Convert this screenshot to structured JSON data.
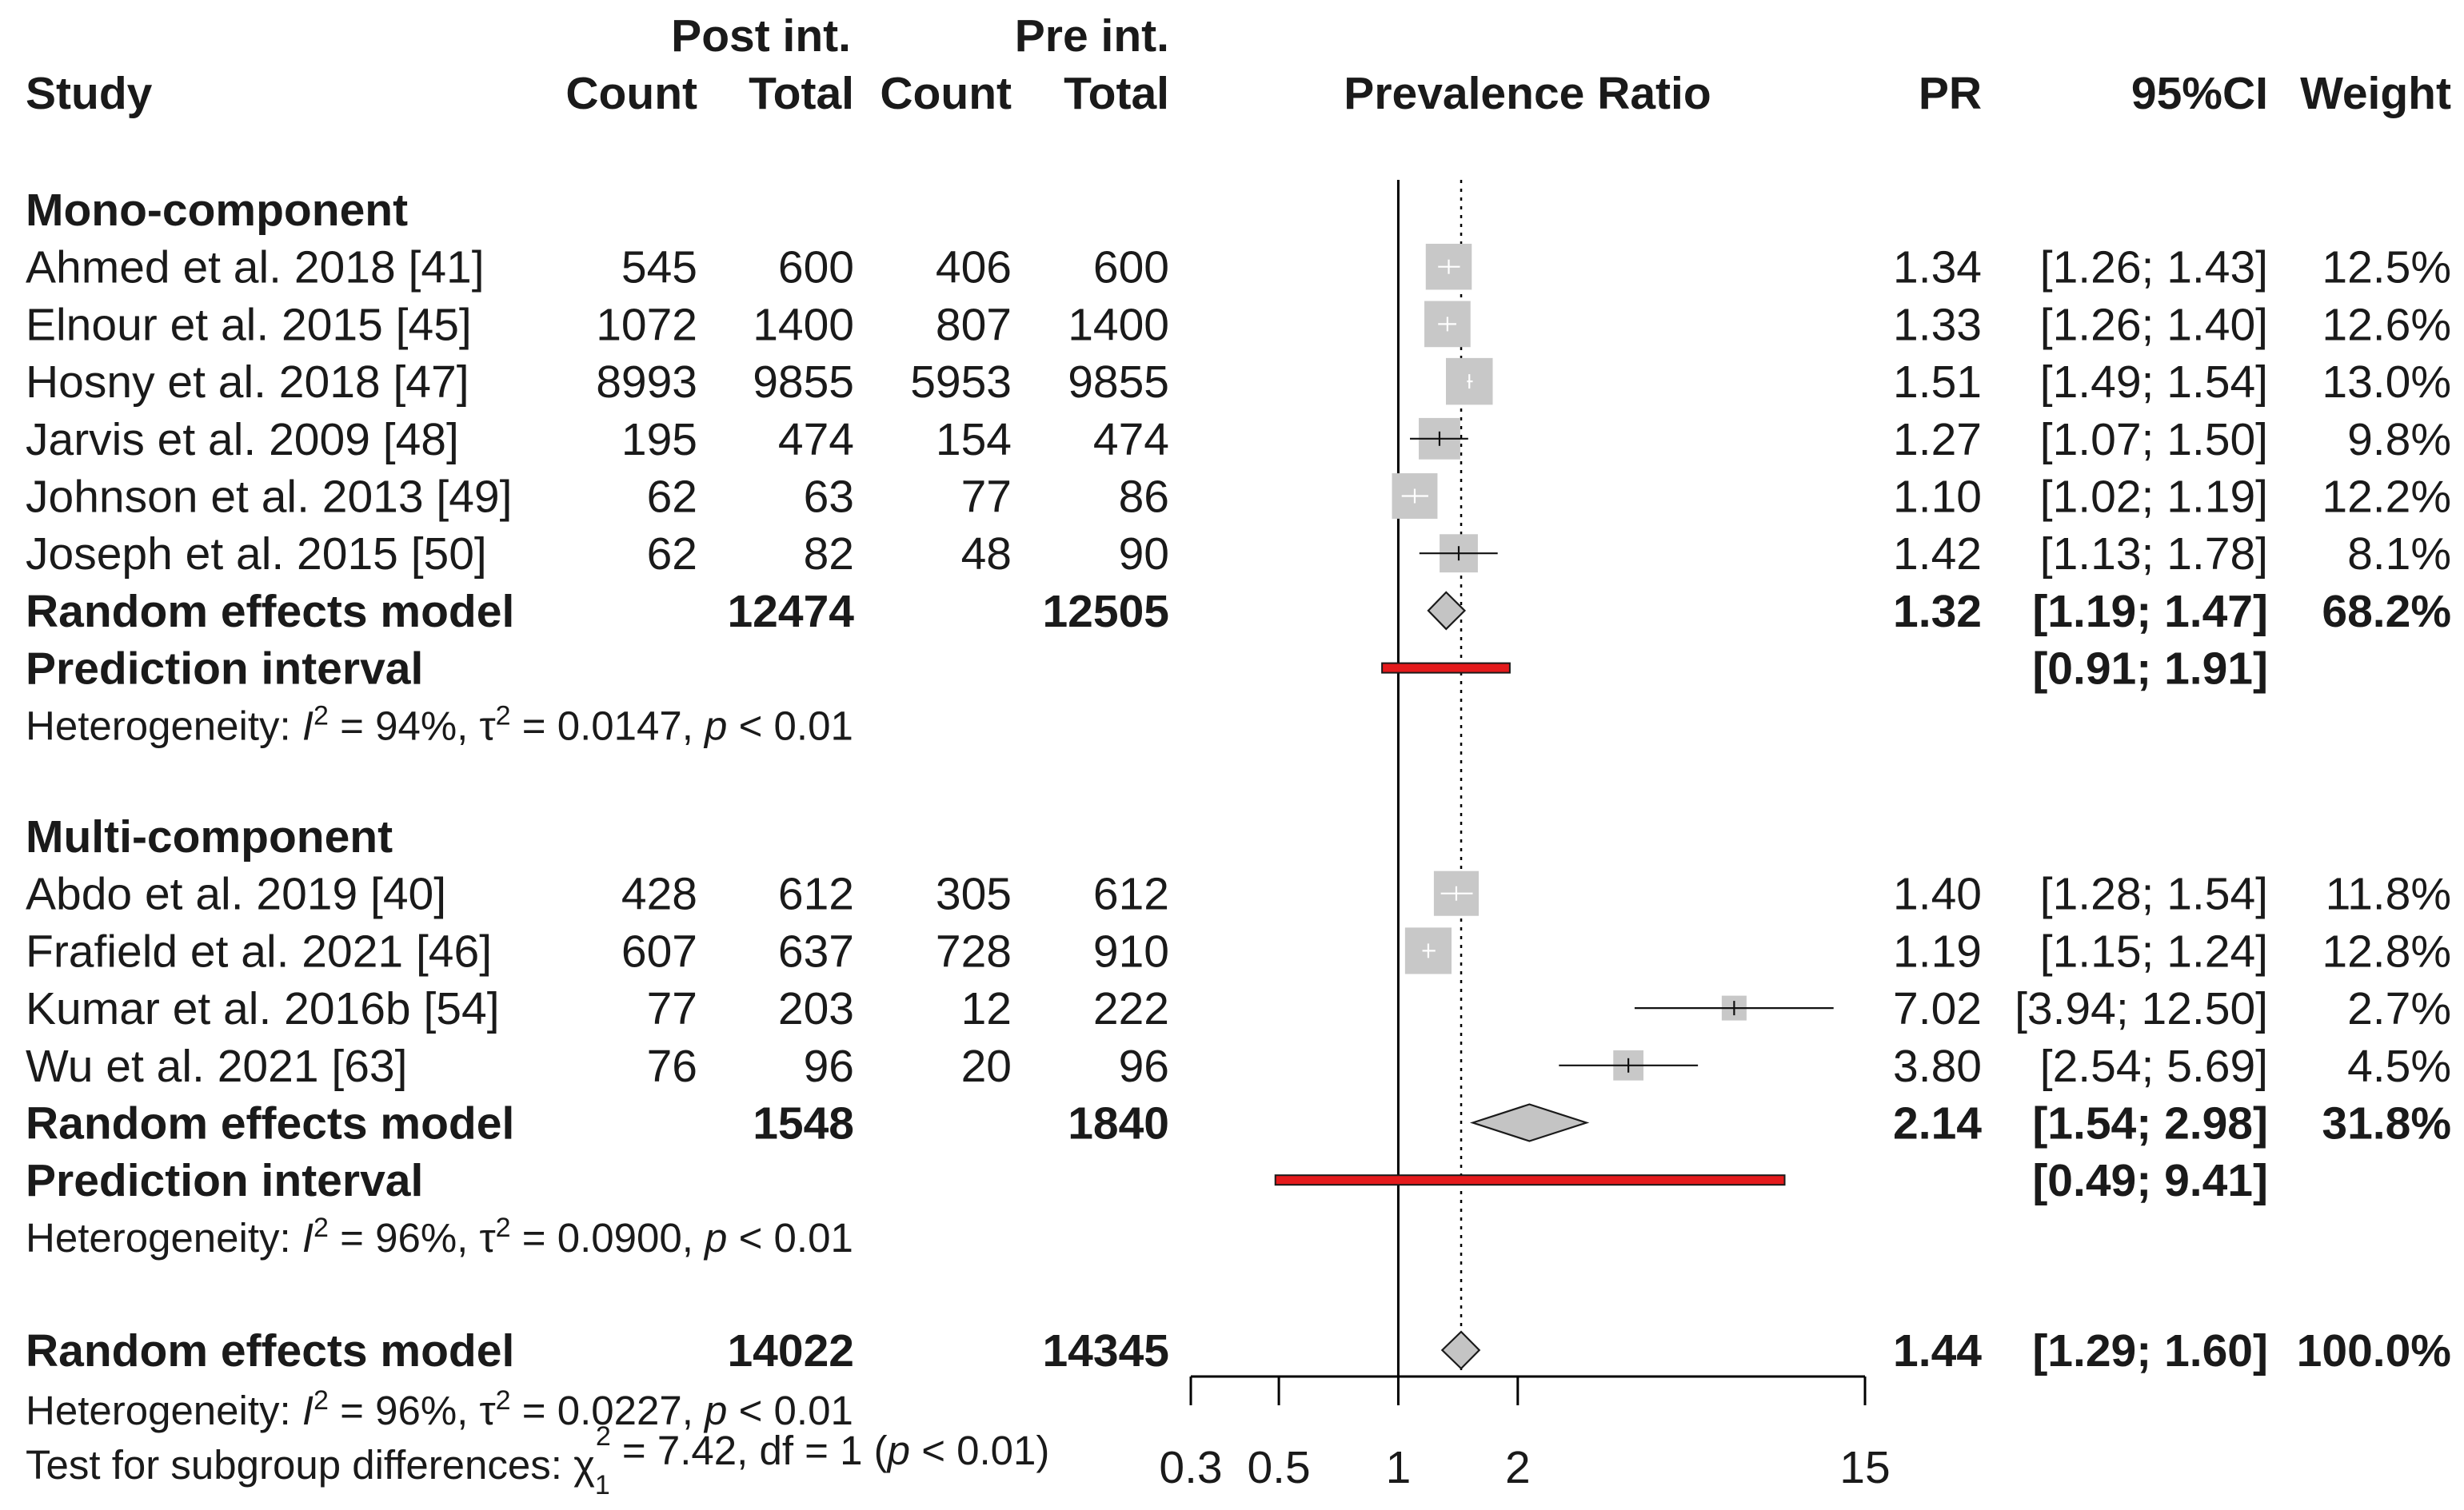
{
  "headers": {
    "post_int": "Post int.",
    "pre_int": "Pre int.",
    "study": "Study",
    "count1": "Count",
    "total1": "Total",
    "count2": "Count",
    "total2": "Total",
    "prevalence_ratio": "Prevalence Ratio",
    "pr": "PR",
    "ci": "95%CI",
    "weight": "Weight"
  },
  "colors": {
    "text": "#1a1a1a",
    "box": "#c8c8c8",
    "diamond_fill": "#c4c4c4",
    "prediction_fill": "#e41a1c",
    "axis": "#000000"
  },
  "chart_data": {
    "type": "forest",
    "scale": "log",
    "null_line": 1,
    "overall_line": 1.44,
    "axis_ticks": [
      0.3,
      0.5,
      1,
      2,
      15
    ],
    "axis_tick_labels": [
      "0.3",
      "0.5",
      "1",
      "2",
      "15"
    ],
    "subgroups": [
      {
        "name": "Mono-component",
        "studies": [
          {
            "study": "Ahmed et al. 2018 [41]",
            "post_count": "545",
            "post_total": "600",
            "pre_count": "406",
            "pre_total": "600",
            "pr": 1.34,
            "lo": 1.26,
            "hi": 1.43,
            "pr_text": "1.34",
            "ci_text": "[1.26;  1.43]",
            "weight": 12.5,
            "weight_text": "12.5%"
          },
          {
            "study": "Elnour et al. 2015 [45]",
            "post_count": "1072",
            "post_total": "1400",
            "pre_count": "807",
            "pre_total": "1400",
            "pr": 1.33,
            "lo": 1.26,
            "hi": 1.4,
            "pr_text": "1.33",
            "ci_text": "[1.26;  1.40]",
            "weight": 12.6,
            "weight_text": "12.6%"
          },
          {
            "study": "Hosny et al. 2018 [47]",
            "post_count": "8993",
            "post_total": "9855",
            "pre_count": "5953",
            "pre_total": "9855",
            "pr": 1.51,
            "lo": 1.49,
            "hi": 1.54,
            "pr_text": "1.51",
            "ci_text": "[1.49;  1.54]",
            "weight": 13.0,
            "weight_text": "13.0%"
          },
          {
            "study": "Jarvis et al. 2009 [48]",
            "post_count": "195",
            "post_total": "474",
            "pre_count": "154",
            "pre_total": "474",
            "pr": 1.27,
            "lo": 1.07,
            "hi": 1.5,
            "pr_text": "1.27",
            "ci_text": "[1.07;  1.50]",
            "weight": 9.8,
            "weight_text": "9.8%"
          },
          {
            "study": "Johnson et al. 2013 [49]",
            "post_count": "62",
            "post_total": "63",
            "pre_count": "77",
            "pre_total": "86",
            "pr": 1.1,
            "lo": 1.02,
            "hi": 1.19,
            "pr_text": "1.10",
            "ci_text": "[1.02;  1.19]",
            "weight": 12.2,
            "weight_text": "12.2%"
          },
          {
            "study": "Joseph et al. 2015 [50]",
            "post_count": "62",
            "post_total": "82",
            "pre_count": "48",
            "pre_total": "90",
            "pr": 1.42,
            "lo": 1.13,
            "hi": 1.78,
            "pr_text": "1.42",
            "ci_text": "[1.13;  1.78]",
            "weight": 8.1,
            "weight_text": "8.1%"
          }
        ],
        "random": {
          "label": "Random effects model",
          "post_total": "12474",
          "pre_total": "12505",
          "pr": 1.32,
          "lo": 1.19,
          "hi": 1.47,
          "pr_text": "1.32",
          "ci_text": "[1.19;  1.47]",
          "weight_text": "68.2%"
        },
        "prediction": {
          "label": "Prediction interval",
          "lo": 0.91,
          "hi": 1.91,
          "ci_text": "[0.91;  1.91]"
        },
        "heterogeneity": {
          "prefix": "Heterogeneity: ",
          "i2": "I",
          "i2_rest": " = 94%, ",
          "tau": "τ",
          "tau_rest": " = 0.0147, ",
          "p": "p",
          "p_rest": " < 0.01"
        }
      },
      {
        "name": "Multi-component",
        "studies": [
          {
            "study": "Abdo et al. 2019 [40]",
            "post_count": "428",
            "post_total": "612",
            "pre_count": "305",
            "pre_total": "612",
            "pr": 1.4,
            "lo": 1.28,
            "hi": 1.54,
            "pr_text": "1.40",
            "ci_text": "[1.28;  1.54]",
            "weight": 11.8,
            "weight_text": "11.8%"
          },
          {
            "study": "Frafield et al. 2021 [46]",
            "post_count": "607",
            "post_total": "637",
            "pre_count": "728",
            "pre_total": "910",
            "pr": 1.19,
            "lo": 1.15,
            "hi": 1.24,
            "pr_text": "1.19",
            "ci_text": "[1.15;  1.24]",
            "weight": 12.8,
            "weight_text": "12.8%"
          },
          {
            "study": "Kumar et al. 2016b [54]",
            "post_count": "77",
            "post_total": "203",
            "pre_count": "12",
            "pre_total": "222",
            "pr": 7.02,
            "lo": 3.94,
            "hi": 12.5,
            "pr_text": "7.02",
            "ci_text": "[3.94; 12.50]",
            "weight": 2.7,
            "weight_text": "2.7%"
          },
          {
            "study": "Wu et al. 2021 [63]",
            "post_count": "76",
            "post_total": "96",
            "pre_count": "20",
            "pre_total": "96",
            "pr": 3.8,
            "lo": 2.54,
            "hi": 5.69,
            "pr_text": "3.80",
            "ci_text": "[2.54;  5.69]",
            "weight": 4.5,
            "weight_text": "4.5%"
          }
        ],
        "random": {
          "label": "Random effects model",
          "post_total": "1548",
          "pre_total": "1840",
          "pr": 2.14,
          "lo": 1.54,
          "hi": 2.98,
          "pr_text": "2.14",
          "ci_text": "[1.54;  2.98]",
          "weight_text": "31.8%"
        },
        "prediction": {
          "label": "Prediction interval",
          "lo": 0.49,
          "hi": 9.41,
          "ci_text": "[0.49;  9.41]"
        },
        "heterogeneity": {
          "prefix": "Heterogeneity: ",
          "i2": "I",
          "i2_rest": " = 96%, ",
          "tau": "τ",
          "tau_rest": " = 0.0900, ",
          "p": "p",
          "p_rest": " < 0.01"
        }
      }
    ],
    "overall": {
      "label": "Random effects model",
      "post_total": "14022",
      "pre_total": "14345",
      "pr": 1.44,
      "lo": 1.29,
      "hi": 1.6,
      "pr_text": "1.44",
      "ci_text": "[1.29;  1.60]",
      "weight_text": "100.0%",
      "heterogeneity": {
        "prefix": "Heterogeneity: ",
        "i2": "I",
        "i2_rest": " = 96%, ",
        "tau": "τ",
        "tau_rest": " = 0.0227, ",
        "p": "p",
        "p_rest": " < 0.01"
      },
      "subgroup_test": {
        "prefix": "Test for subgroup differences: ",
        "chi": "χ",
        "chi_sub": "1",
        "chi_sup": "2",
        "rest1": " = 7.42, df = 1 (",
        "p": "p",
        "rest2": " < 0.01)"
      }
    }
  }
}
